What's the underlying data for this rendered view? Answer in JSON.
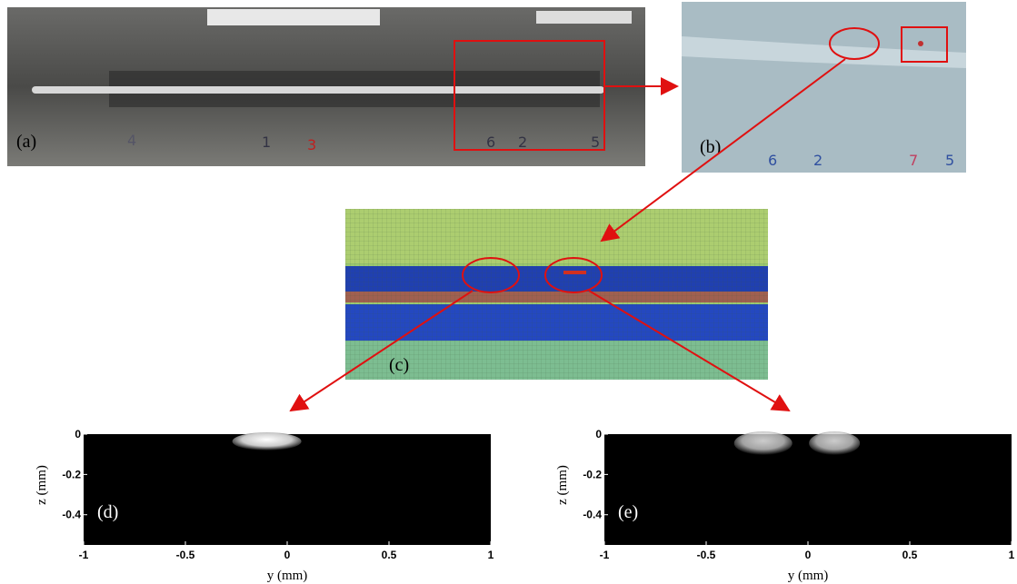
{
  "photo_a": {
    "label": "(a)",
    "marks": [
      "4",
      "1",
      "3",
      "6",
      "2",
      "5"
    ]
  },
  "photo_b": {
    "label": "(b)",
    "marks": [
      "6",
      "2",
      "7",
      "5"
    ]
  },
  "map_c": {
    "label": "(c)"
  },
  "plots": [
    {
      "label": "(d)",
      "x_label": "y (mm)",
      "y_label": "z (mm)",
      "xlim": [
        -1,
        1
      ],
      "ylim": [
        0,
        -0.55
      ],
      "xticks": [
        -1,
        -0.5,
        0,
        0.5,
        1
      ],
      "yticks": [
        0,
        -0.2,
        -0.4
      ]
    },
    {
      "label": "(e)",
      "x_label": "y (mm)",
      "y_label": "z (mm)",
      "xlim": [
        -1,
        1
      ],
      "ylim": [
        0,
        -0.55
      ],
      "xticks": [
        -1,
        -0.5,
        0,
        0.5,
        1
      ],
      "yticks": [
        0,
        -0.2,
        -0.4
      ]
    }
  ]
}
